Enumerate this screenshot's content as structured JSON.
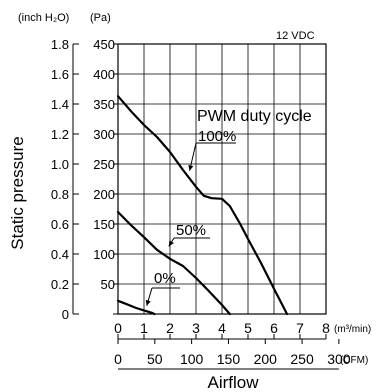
{
  "chart_data": {
    "type": "line",
    "title": "",
    "condition_label": "12 VDC",
    "ylabel": "Static pressure",
    "xlabel": "Airflow",
    "y_unit_left": "(inch H₂O)",
    "y_unit_right": "(Pa)",
    "x_unit_top": "(m³/min)",
    "x_unit_bottom": "(CFM)",
    "ylim_pa": [
      0,
      450
    ],
    "xlim_m3min": [
      0,
      8
    ],
    "grid": true,
    "pa_ticks": [
      "450",
      "400",
      "350",
      "300",
      "250",
      "200",
      "150",
      "100",
      "50",
      "0"
    ],
    "pa_tick_values": [
      450,
      400,
      350,
      300,
      250,
      200,
      150,
      100,
      50,
      0
    ],
    "inch_ticks": [
      "1.8",
      "1.6",
      "1.4",
      "1.2",
      "1.0",
      "0.8",
      "0.6",
      "0.4",
      "0.2",
      "0"
    ],
    "inch_tick_values": [
      1.8,
      1.6,
      1.4,
      1.2,
      1.0,
      0.8,
      0.6,
      0.4,
      0.2,
      0
    ],
    "m3min_ticks": [
      "0",
      "1",
      "2",
      "3",
      "4",
      "5",
      "6",
      "7",
      "8"
    ],
    "m3min_tick_values": [
      0,
      1,
      2,
      3,
      4,
      5,
      6,
      7,
      8
    ],
    "cfm_ticks": [
      "0",
      "50",
      "100",
      "150",
      "200",
      "250",
      "300"
    ],
    "cfm_tick_values": [
      0,
      50,
      100,
      150,
      200,
      250,
      300
    ],
    "annotation_title": "PWM duty cycle",
    "series": [
      {
        "name": "100%",
        "x": [
          0,
          0.5,
          1,
          1.5,
          2,
          2.5,
          3,
          3.3,
          3.6,
          4,
          4.3,
          4.7,
          5,
          5.5,
          6,
          6.5
        ],
        "y": [
          363,
          338,
          315,
          295,
          270,
          240,
          212,
          197,
          193,
          192,
          180,
          150,
          125,
          85,
          42,
          0
        ]
      },
      {
        "name": "50%",
        "x": [
          0,
          0.5,
          1,
          1.5,
          2,
          2.5,
          3,
          3.5,
          4,
          4.3
        ],
        "y": [
          170,
          148,
          128,
          107,
          92,
          80,
          60,
          38,
          15,
          0
        ]
      },
      {
        "name": "0%",
        "x": [
          0,
          0.3,
          0.7,
          1,
          1.3,
          1.4
        ],
        "y": [
          22,
          17,
          10,
          6,
          2,
          0
        ]
      }
    ]
  }
}
